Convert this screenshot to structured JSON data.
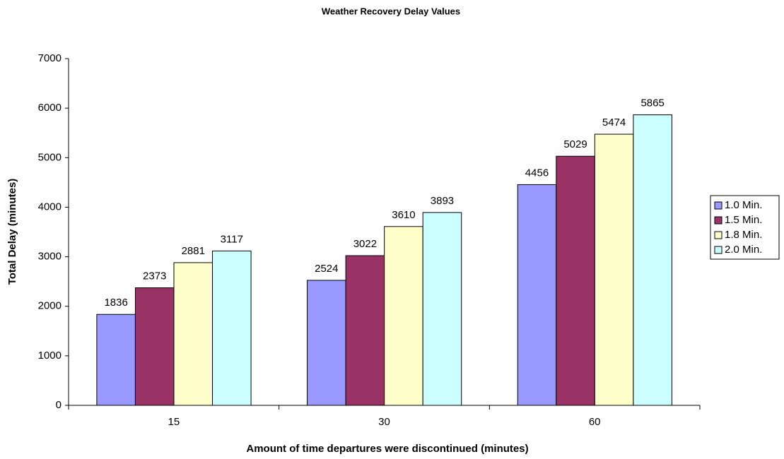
{
  "chart_data": {
    "type": "bar",
    "title": "Weather Recovery Delay Values",
    "x_label": "Amount of time departures were discontinued (minutes)",
    "y_label": "Total Delay (minutes)",
    "categories": [
      "15",
      "30",
      "60"
    ],
    "series": [
      {
        "name": "1.0 Min.",
        "color": "#9999ff",
        "values": [
          1836,
          2524,
          4456
        ]
      },
      {
        "name": "1.5 Min.",
        "color": "#993366",
        "values": [
          2373,
          3022,
          5029
        ]
      },
      {
        "name": "1.8 Min.",
        "color": "#ffffcc",
        "values": [
          2881,
          3610,
          5474
        ]
      },
      {
        "name": "2.0 Min.",
        "color": "#ccffff",
        "values": [
          3117,
          3893,
          5865
        ]
      }
    ],
    "ylim": [
      0,
      7000
    ],
    "yticks": [
      0,
      1000,
      2000,
      3000,
      4000,
      5000,
      6000,
      7000
    ],
    "grid": false,
    "legend": "right"
  }
}
